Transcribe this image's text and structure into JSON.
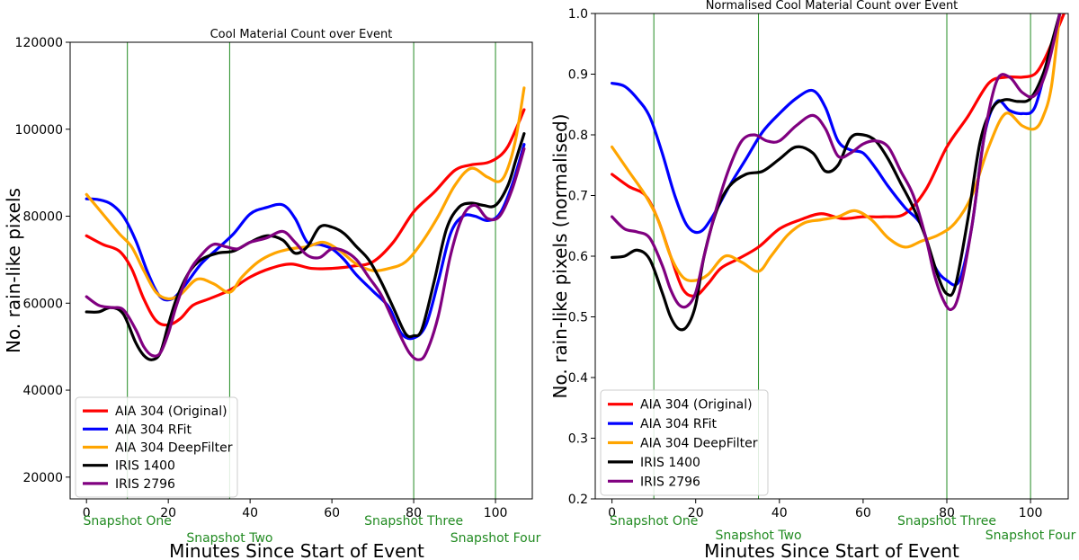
{
  "chart_data": [
    {
      "type": "line",
      "title": "Cool Material Count over Event",
      "xlabel": "Minutes Since Start of Event",
      "ylabel": "No. rain-like pixels",
      "xlim": [
        -4,
        109
      ],
      "ylim": [
        15000,
        120000
      ],
      "xticks": [
        "0",
        "20",
        "40",
        "60",
        "80",
        "100"
      ],
      "xtick_values": [
        0,
        20,
        40,
        60,
        80,
        100
      ],
      "yticks": [
        "20000",
        "40000",
        "60000",
        "80000",
        "100000",
        "120000"
      ],
      "ytick_values": [
        20000,
        40000,
        60000,
        80000,
        100000,
        120000
      ],
      "legend_position": "lower-left",
      "snapshots": [
        {
          "label": "Snapshot One",
          "x": 10
        },
        {
          "label": "Snapshot Two",
          "x": 35
        },
        {
          "label": "Snapshot Three",
          "x": 80
        },
        {
          "label": "Snapshot Four",
          "x": 100
        }
      ],
      "series": [
        {
          "name": "AIA 304 (Original)",
          "color": "#ff0000",
          "x": [
            0,
            4,
            8,
            11,
            14,
            17,
            20,
            23,
            26,
            30,
            35,
            40,
            45,
            50,
            55,
            60,
            65,
            70,
            75,
            80,
            85,
            90,
            94,
            98,
            101,
            103,
            105,
            107
          ],
          "y": [
            75500,
            73500,
            72000,
            68000,
            61000,
            56000,
            55000,
            56500,
            59500,
            61000,
            63000,
            66000,
            68000,
            69000,
            68000,
            68000,
            68500,
            69500,
            74000,
            81000,
            85500,
            90500,
            91800,
            92300,
            93800,
            96000,
            100000,
            104500
          ]
        },
        {
          "name": "AIA 304 RFit",
          "color": "#0000ff",
          "x": [
            0,
            3,
            6,
            9,
            12,
            15,
            18,
            21,
            24,
            28,
            32,
            36,
            40,
            44,
            48,
            51,
            54,
            57,
            60,
            63,
            66,
            70,
            74,
            77,
            80,
            83,
            86,
            89,
            92,
            95,
            98,
            101,
            104,
            107
          ],
          "y": [
            84000,
            83800,
            82800,
            80000,
            74500,
            67000,
            61500,
            61000,
            64000,
            69000,
            72500,
            76000,
            80500,
            82000,
            82600,
            79500,
            74000,
            73500,
            72500,
            70000,
            66500,
            62800,
            59000,
            53000,
            52000,
            55000,
            65000,
            76000,
            80000,
            80000,
            79000,
            80500,
            87000,
            96500
          ]
        },
        {
          "name": "AIA 304 DeepFilter",
          "color": "#ffa500",
          "x": [
            0,
            4,
            8,
            11,
            14,
            17,
            20,
            23,
            27,
            31,
            35,
            38,
            42,
            46,
            50,
            54,
            58,
            62,
            66,
            70,
            74,
            78,
            82,
            86,
            90,
            94,
            98,
            101,
            103,
            105,
            107
          ],
          "y": [
            85000,
            80500,
            76000,
            73000,
            67500,
            62500,
            61000,
            62000,
            65500,
            64500,
            62500,
            66000,
            69500,
            71500,
            72500,
            73000,
            74000,
            72000,
            69000,
            67500,
            68000,
            69500,
            74000,
            80000,
            87000,
            91000,
            89000,
            88000,
            91000,
            98000,
            109500
          ]
        },
        {
          "name": "IRIS 1400",
          "color": "#000000",
          "x": [
            0,
            3,
            6,
            9,
            12,
            14,
            16,
            18,
            20,
            22,
            25,
            28,
            32,
            36,
            40,
            44,
            48,
            51,
            54,
            57,
            60,
            63,
            66,
            69,
            72,
            75,
            78,
            80,
            82,
            85,
            88,
            91,
            94,
            97,
            100,
            103,
            105,
            107
          ],
          "y": [
            58000,
            58000,
            59000,
            57500,
            51000,
            48000,
            47000,
            48500,
            55000,
            61000,
            67000,
            70000,
            71500,
            72000,
            74000,
            75500,
            74500,
            71500,
            73000,
            77500,
            77500,
            76000,
            73000,
            70000,
            65000,
            59000,
            53000,
            52500,
            54000,
            65000,
            77000,
            82000,
            83000,
            82500,
            82500,
            87000,
            93000,
            99000
          ]
        },
        {
          "name": "IRIS 2796",
          "color": "#800080",
          "x": [
            0,
            3,
            6,
            9,
            12,
            14,
            16,
            18,
            20,
            22,
            25,
            28,
            31,
            34,
            37,
            40,
            44,
            48,
            51,
            54,
            57,
            60,
            63,
            66,
            69,
            72,
            75,
            77,
            79,
            81,
            83,
            86,
            89,
            92,
            95,
            98,
            101,
            104,
            107
          ],
          "y": [
            61500,
            59500,
            59000,
            58500,
            54000,
            50000,
            48000,
            48500,
            53000,
            59500,
            67000,
            71000,
            73500,
            73000,
            72500,
            74000,
            75000,
            76500,
            74000,
            71000,
            70500,
            72500,
            72000,
            70000,
            66000,
            62000,
            56000,
            52000,
            48500,
            47000,
            48500,
            57000,
            71000,
            80000,
            82500,
            79500,
            80000,
            86000,
            95500
          ]
        }
      ]
    },
    {
      "type": "line",
      "title": "Normalised Cool Material Count over Event",
      "xlabel": "Minutes Since Start of Event",
      "ylabel": "No. rain-like pixels (normalised)",
      "xlim": [
        -4,
        109
      ],
      "ylim": [
        0.2,
        1.0
      ],
      "xticks": [
        "0",
        "20",
        "40",
        "60",
        "80",
        "100"
      ],
      "xtick_values": [
        0,
        20,
        40,
        60,
        80,
        100
      ],
      "yticks": [
        "0.2",
        "0.3",
        "0.4",
        "0.5",
        "0.6",
        "0.7",
        "0.8",
        "0.9",
        "1.0"
      ],
      "ytick_values": [
        0.2,
        0.3,
        0.4,
        0.5,
        0.6,
        0.7,
        0.8,
        0.9,
        1.0
      ],
      "legend_position": "lower-left",
      "snapshots": [
        {
          "label": "Snapshot One",
          "x": 10
        },
        {
          "label": "Snapshot Two",
          "x": 35
        },
        {
          "label": "Snapshot Three",
          "x": 80
        },
        {
          "label": "Snapshot Four",
          "x": 100
        }
      ],
      "series": [
        {
          "name": "AIA 304 (Original)",
          "color": "#ff0000",
          "x": [
            0,
            4,
            8,
            11,
            14,
            17,
            20,
            23,
            26,
            30,
            35,
            40,
            45,
            50,
            55,
            60,
            65,
            70,
            75,
            80,
            85,
            90,
            94,
            98,
            101,
            103,
            105,
            108
          ],
          "y": [
            0.735,
            0.715,
            0.7,
            0.66,
            0.6,
            0.545,
            0.535,
            0.555,
            0.58,
            0.595,
            0.615,
            0.645,
            0.66,
            0.67,
            0.662,
            0.665,
            0.665,
            0.67,
            0.71,
            0.78,
            0.83,
            0.885,
            0.895,
            0.895,
            0.9,
            0.92,
            0.95,
            1.0
          ]
        },
        {
          "name": "AIA 304 RFit",
          "color": "#0000ff",
          "x": [
            0,
            3,
            6,
            9,
            12,
            15,
            18,
            21,
            24,
            28,
            32,
            36,
            40,
            44,
            48,
            51,
            54,
            57,
            60,
            63,
            66,
            70,
            74,
            77,
            80,
            83,
            86,
            89,
            92,
            95,
            98,
            101,
            104,
            107
          ],
          "y": [
            0.885,
            0.88,
            0.86,
            0.83,
            0.77,
            0.7,
            0.65,
            0.64,
            0.665,
            0.715,
            0.76,
            0.805,
            0.835,
            0.86,
            0.873,
            0.845,
            0.79,
            0.775,
            0.77,
            0.745,
            0.715,
            0.68,
            0.65,
            0.585,
            0.56,
            0.56,
            0.65,
            0.8,
            0.855,
            0.84,
            0.835,
            0.845,
            0.92,
            1.0
          ]
        },
        {
          "name": "AIA 304 DeepFilter",
          "color": "#ffa500",
          "x": [
            0,
            4,
            8,
            11,
            14,
            17,
            20,
            23,
            27,
            31,
            35,
            38,
            42,
            46,
            50,
            54,
            58,
            62,
            66,
            70,
            74,
            78,
            82,
            86,
            90,
            94,
            98,
            101,
            103,
            105,
            107
          ],
          "y": [
            0.78,
            0.74,
            0.7,
            0.66,
            0.6,
            0.565,
            0.56,
            0.57,
            0.6,
            0.59,
            0.575,
            0.6,
            0.635,
            0.655,
            0.66,
            0.665,
            0.675,
            0.66,
            0.63,
            0.615,
            0.625,
            0.635,
            0.655,
            0.7,
            0.78,
            0.835,
            0.815,
            0.81,
            0.83,
            0.88,
            1.0
          ]
        },
        {
          "name": "IRIS 1400",
          "color": "#000000",
          "x": [
            0,
            3,
            6,
            9,
            12,
            14,
            16,
            18,
            20,
            22,
            25,
            28,
            32,
            36,
            40,
            44,
            48,
            51,
            54,
            57,
            60,
            63,
            66,
            69,
            72,
            75,
            78,
            80,
            82,
            85,
            88,
            91,
            94,
            97,
            100,
            103,
            105,
            107
          ],
          "y": [
            0.598,
            0.6,
            0.61,
            0.595,
            0.54,
            0.5,
            0.48,
            0.485,
            0.52,
            0.6,
            0.675,
            0.715,
            0.735,
            0.74,
            0.76,
            0.78,
            0.77,
            0.74,
            0.75,
            0.795,
            0.8,
            0.79,
            0.76,
            0.72,
            0.68,
            0.63,
            0.565,
            0.538,
            0.55,
            0.66,
            0.79,
            0.845,
            0.858,
            0.855,
            0.86,
            0.9,
            0.95,
            1.0
          ]
        },
        {
          "name": "IRIS 2796",
          "color": "#800080",
          "x": [
            0,
            3,
            6,
            9,
            12,
            14,
            16,
            18,
            20,
            22,
            25,
            28,
            31,
            34,
            37,
            40,
            44,
            48,
            51,
            54,
            57,
            60,
            63,
            66,
            69,
            72,
            75,
            77,
            79,
            81,
            83,
            86,
            89,
            92,
            95,
            98,
            101,
            104,
            107
          ],
          "y": [
            0.665,
            0.645,
            0.64,
            0.63,
            0.585,
            0.545,
            0.52,
            0.518,
            0.54,
            0.6,
            0.68,
            0.745,
            0.79,
            0.8,
            0.79,
            0.79,
            0.815,
            0.832,
            0.81,
            0.765,
            0.77,
            0.785,
            0.79,
            0.78,
            0.74,
            0.7,
            0.63,
            0.57,
            0.53,
            0.512,
            0.54,
            0.65,
            0.8,
            0.89,
            0.895,
            0.87,
            0.865,
            0.91,
            1.0
          ]
        }
      ]
    }
  ]
}
